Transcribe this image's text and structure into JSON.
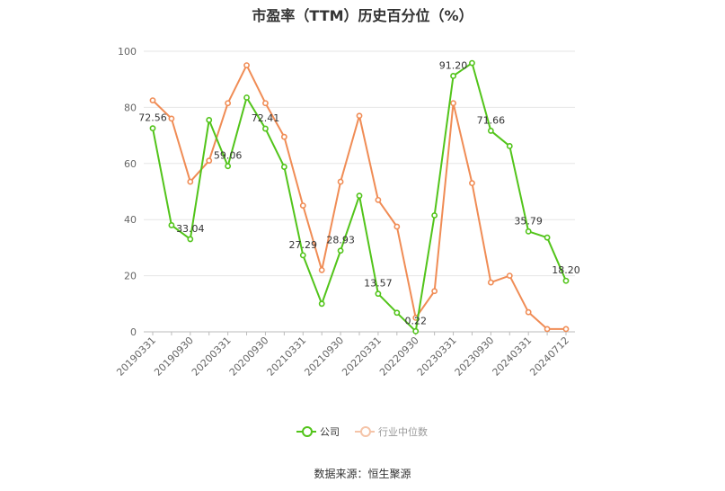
{
  "chart_data": {
    "type": "line",
    "title": "市盈率（TTM）历史百分位（%）",
    "source": "数据来源：恒生聚源",
    "ylim": [
      0,
      100
    ],
    "yticks": [
      "0",
      "20",
      "40",
      "60",
      "80",
      "100"
    ],
    "grid": true,
    "legend_position": "bottom",
    "x": [
      "20190331",
      "20190630",
      "20190930",
      "20191231",
      "20200331",
      "20200630",
      "20200930",
      "20201231",
      "20210331",
      "20210630",
      "20210930",
      "20211231",
      "20220331",
      "20220630",
      "20220930",
      "20221231",
      "20230331",
      "20230630",
      "20230930",
      "20231231",
      "20240331",
      "20240630",
      "20240712"
    ],
    "x_tick_labels": [
      "20190331",
      "",
      "20190930",
      "",
      "20200331",
      "",
      "20200930",
      "",
      "20210331",
      "",
      "20210930",
      "",
      "20220331",
      "",
      "20220930",
      "",
      "20230331",
      "",
      "20230930",
      "",
      "20240331",
      "",
      "20240712"
    ],
    "series": [
      {
        "name": "公司",
        "color": "#52c41a",
        "values": [
          72.56,
          38,
          33.04,
          75.5,
          59.06,
          83.5,
          72.41,
          58.8,
          27.29,
          10,
          28.93,
          48.5,
          13.57,
          6.8,
          0.22,
          41.5,
          91.2,
          95.8,
          71.66,
          66.2,
          35.79,
          33.6,
          18.2
        ],
        "labels": [
          "72.56",
          "",
          "33.04",
          "",
          "59.06",
          "",
          "72.41",
          "",
          "27.29",
          "",
          "28.93",
          "",
          "13.57",
          "",
          "0.22",
          "",
          "91.20",
          "",
          "71.66",
          "",
          "35.79",
          "",
          "18.20"
        ]
      },
      {
        "name": "行业中位数",
        "color": "#f08c55",
        "values": [
          82.5,
          76,
          53.5,
          61,
          81.5,
          95,
          81.5,
          69.5,
          45,
          22,
          53.5,
          77,
          47,
          37.5,
          5,
          14.5,
          81.5,
          53,
          17.6,
          20,
          7,
          1,
          1
        ],
        "labels": []
      }
    ]
  }
}
